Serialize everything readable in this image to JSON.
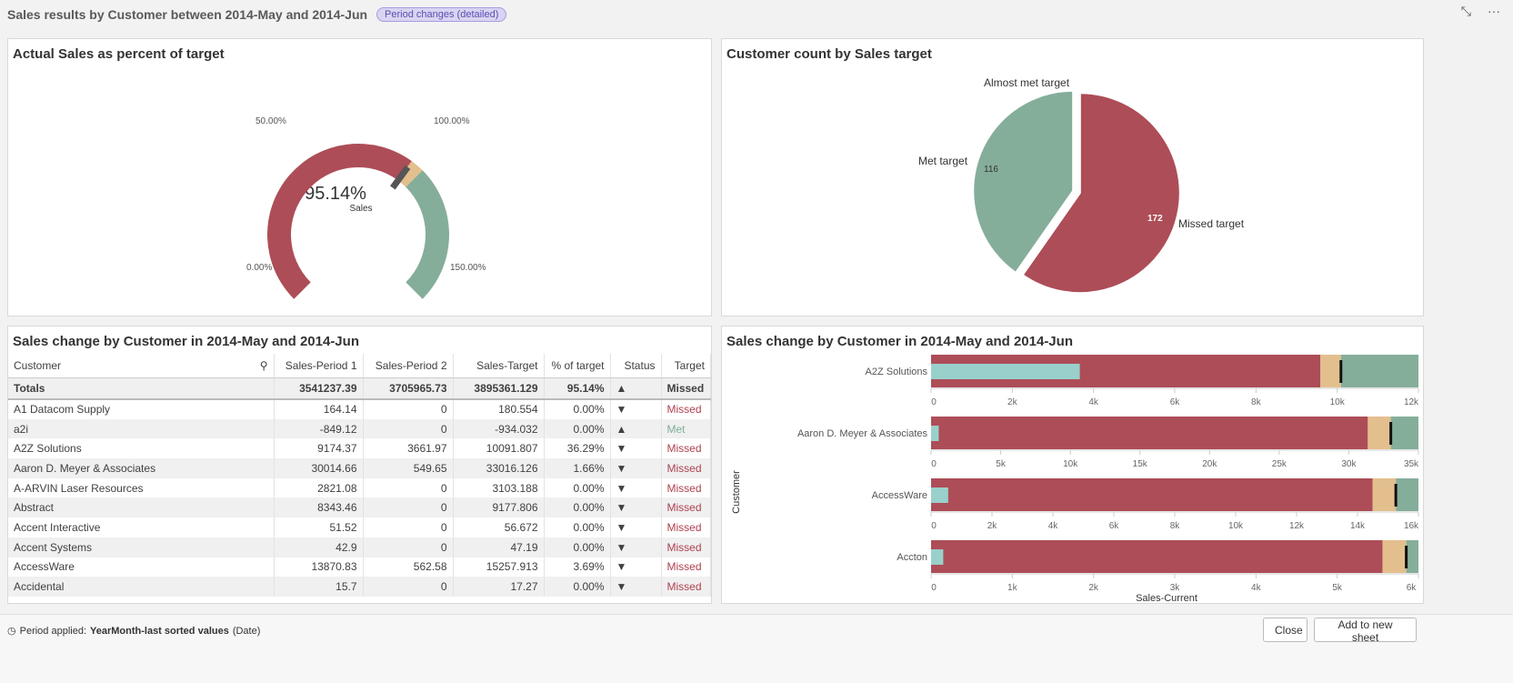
{
  "header": {
    "title": "Sales results by Customer between 2014-May and 2014-Jun",
    "badge": "Period changes (detailed)",
    "icons": [
      "collapse-icon",
      "more-icon"
    ]
  },
  "colors": {
    "missed": "#ad4d57",
    "almost": "#e3bf8d",
    "met": "#85ae9a",
    "actual": "#99d0cc",
    "marker": "#111111"
  },
  "gauge": {
    "title": "Actual Sales as percent of target",
    "value": 95.14,
    "value_label": "95.14%",
    "measure": "Sales",
    "min": 0,
    "max": 150,
    "ticks": [
      "0.00%",
      "50.00%",
      "100.00%",
      "150.00%"
    ],
    "bands": [
      {
        "from": 0,
        "to": 95,
        "color": "#ad4d57"
      },
      {
        "from": 95,
        "to": 100,
        "color": "#e3bf8d"
      },
      {
        "from": 100,
        "to": 150,
        "color": "#85ae9a"
      }
    ]
  },
  "pie": {
    "title": "Customer count by Sales target",
    "slices": [
      {
        "label": "Missed target",
        "value": 172,
        "color": "#ad4d57"
      },
      {
        "label": "Almost met target",
        "value": 0,
        "color": "#e3bf8d"
      },
      {
        "label": "Met target",
        "value": 116,
        "color": "#85ae9a"
      }
    ]
  },
  "table": {
    "title": "Sales change by Customer in 2014-May and 2014-Jun",
    "columns": [
      "Customer",
      "Sales-Period 1",
      "Sales-Period 2",
      "Sales-Target",
      "% of target",
      "Status",
      "Target"
    ],
    "totals": [
      "Totals",
      "3541237.39",
      "3705965.73",
      "3895361.129",
      "95.14%",
      "▲",
      "Missed"
    ],
    "rows": [
      [
        "A1 Datacom Supply",
        "164.14",
        "0",
        "180.554",
        "0.00%",
        "▼",
        "Missed"
      ],
      [
        "a2i",
        "-849.12",
        "0",
        "-934.032",
        "0.00%",
        "▲",
        "Met"
      ],
      [
        "A2Z Solutions",
        "9174.37",
        "3661.97",
        "10091.807",
        "36.29%",
        "▼",
        "Missed"
      ],
      [
        "Aaron D. Meyer & Associates",
        "30014.66",
        "549.65",
        "33016.126",
        "1.66%",
        "▼",
        "Missed"
      ],
      [
        "A-ARVIN Laser Resources",
        "2821.08",
        "0",
        "3103.188",
        "0.00%",
        "▼",
        "Missed"
      ],
      [
        "Abstract",
        "8343.46",
        "0",
        "9177.806",
        "0.00%",
        "▼",
        "Missed"
      ],
      [
        "Accent Interactive",
        "51.52",
        "0",
        "56.672",
        "0.00%",
        "▼",
        "Missed"
      ],
      [
        "Accent Systems",
        "42.9",
        "0",
        "47.19",
        "0.00%",
        "▼",
        "Missed"
      ],
      [
        "AccessWare",
        "13870.83",
        "562.58",
        "15257.913",
        "3.69%",
        "▼",
        "Missed"
      ],
      [
        "Accidental",
        "15.7",
        "0",
        "17.27",
        "0.00%",
        "▼",
        "Missed"
      ]
    ]
  },
  "bullet": {
    "title": "Sales change by Customer in 2014-May and 2014-Jun",
    "ylabel": "Customer",
    "xlabel": "Sales-Current",
    "items": [
      {
        "name": "A2Z Solutions",
        "value": 3661.97,
        "target": 10091.807,
        "max": 12000,
        "ticks": [
          "0",
          "2k",
          "4k",
          "6k",
          "8k",
          "10k",
          "12k"
        ]
      },
      {
        "name": "Aaron D. Meyer & Associates",
        "value": 549.65,
        "target": 33016.126,
        "max": 35000,
        "ticks": [
          "0",
          "5k",
          "10k",
          "15k",
          "20k",
          "25k",
          "30k",
          "35k"
        ]
      },
      {
        "name": "AccessWare",
        "value": 562.58,
        "target": 15257.913,
        "max": 16000,
        "ticks": [
          "0",
          "2k",
          "4k",
          "6k",
          "8k",
          "10k",
          "12k",
          "14k",
          "16k"
        ]
      },
      {
        "name": "Accton",
        "value": 150,
        "target": 5850,
        "max": 6000,
        "ticks": [
          "0",
          "1k",
          "2k",
          "3k",
          "4k",
          "5k",
          "6k"
        ]
      }
    ]
  },
  "footer": {
    "label": "Period applied:",
    "value": "YearMonth-last sorted values",
    "suffix": "(Date)",
    "close": "Close",
    "add": "Add to new sheet"
  }
}
